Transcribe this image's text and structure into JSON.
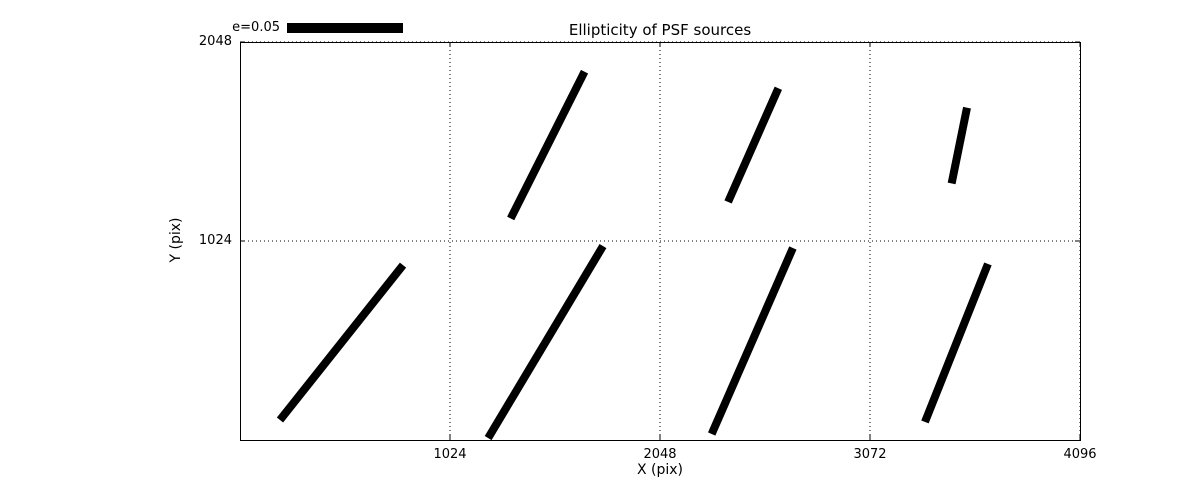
{
  "chart_data": {
    "type": "quiver",
    "title": "Ellipticity of PSF sources",
    "xlabel": "X (pix)",
    "ylabel": "Y (pix)",
    "xlim": [
      0,
      4096
    ],
    "ylim": [
      0,
      2048
    ],
    "xticks": [
      1024,
      2048,
      3072,
      4096
    ],
    "yticks": [
      1024,
      2048
    ],
    "grid": true,
    "legend": {
      "label": "e=0.05",
      "ellipticity_scale": 0.05
    },
    "colors": {
      "fg": "#000000",
      "bg": "#ffffff"
    },
    "whisker_stroke_px": 8,
    "segments": [
      {
        "x1": 1320,
        "y1": 1140,
        "x2": 1680,
        "y2": 1895
      },
      {
        "x1": 2380,
        "y1": 1225,
        "x2": 2625,
        "y2": 1810
      },
      {
        "x1": 3470,
        "y1": 1320,
        "x2": 3545,
        "y2": 1710
      },
      {
        "x1": 195,
        "y1": 103,
        "x2": 795,
        "y2": 900
      },
      {
        "x1": 1210,
        "y1": 10,
        "x2": 1770,
        "y2": 998
      },
      {
        "x1": 2300,
        "y1": 31,
        "x2": 2696,
        "y2": 988
      },
      {
        "x1": 3340,
        "y1": 93,
        "x2": 3647,
        "y2": 906
      }
    ]
  }
}
